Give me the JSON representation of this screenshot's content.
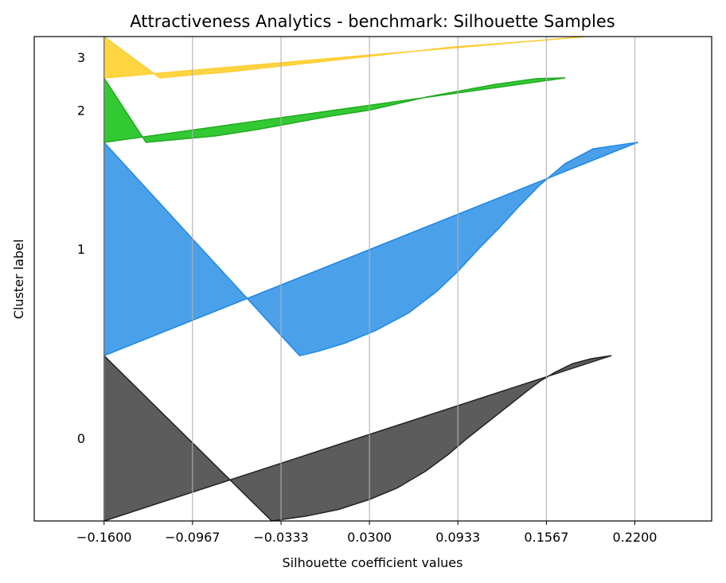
{
  "chart_data": {
    "type": "area",
    "title": "Attractiveness Analytics - benchmark: Silhouette Samples",
    "xlabel": "Silhouette coefficient values",
    "ylabel": "Cluster label",
    "xlim": [
      -0.21,
      0.275
    ],
    "xticks": [
      -0.16,
      -0.0967,
      -0.0333,
      0.03,
      0.0933,
      0.1567,
      0.22
    ],
    "xtick_labels": [
      "−0.1600",
      "−0.0967",
      "−0.0333",
      "0.0300",
      "0.0933",
      "0.1567",
      "0.2200"
    ],
    "grid": "x",
    "clusters": [
      {
        "label": "0",
        "color": "#333333",
        "edge_color": "#222222",
        "rows": [
          0,
          1000
        ],
        "profile": [
          {
            "f": 0.0,
            "v": 0.203
          },
          {
            "f": 0.02,
            "v": 0.188
          },
          {
            "f": 0.05,
            "v": 0.175
          },
          {
            "f": 0.1,
            "v": 0.163
          },
          {
            "f": 0.15,
            "v": 0.153
          },
          {
            "f": 0.2,
            "v": 0.145
          },
          {
            "f": 0.3,
            "v": 0.13
          },
          {
            "f": 0.4,
            "v": 0.115
          },
          {
            "f": 0.5,
            "v": 0.1
          },
          {
            "f": 0.6,
            "v": 0.086
          },
          {
            "f": 0.7,
            "v": 0.07
          },
          {
            "f": 0.8,
            "v": 0.05
          },
          {
            "f": 0.87,
            "v": 0.03
          },
          {
            "f": 0.93,
            "v": 0.008
          },
          {
            "f": 0.97,
            "v": -0.015
          },
          {
            "f": 1.0,
            "v": -0.04
          }
        ]
      },
      {
        "label": "1",
        "color": "#1e88e5",
        "edge_color": "#1e88e5",
        "rows": [
          1000,
          2290
        ],
        "profile": [
          {
            "f": 0.0,
            "v": 0.222
          },
          {
            "f": 0.03,
            "v": 0.19
          },
          {
            "f": 0.1,
            "v": 0.17
          },
          {
            "f": 0.2,
            "v": 0.152
          },
          {
            "f": 0.3,
            "v": 0.137
          },
          {
            "f": 0.4,
            "v": 0.123
          },
          {
            "f": 0.5,
            "v": 0.108
          },
          {
            "f": 0.6,
            "v": 0.094
          },
          {
            "f": 0.7,
            "v": 0.078
          },
          {
            "f": 0.8,
            "v": 0.058
          },
          {
            "f": 0.88,
            "v": 0.035
          },
          {
            "f": 0.94,
            "v": 0.013
          },
          {
            "f": 0.98,
            "v": -0.007
          },
          {
            "f": 1.0,
            "v": -0.02
          }
        ]
      },
      {
        "label": "2",
        "color": "#00bb00",
        "edge_color": "#22aa22",
        "rows": [
          2290,
          2680
        ],
        "profile": [
          {
            "f": 0.0,
            "v": 0.17
          },
          {
            "f": 0.01,
            "v": 0.15
          },
          {
            "f": 0.1,
            "v": 0.12
          },
          {
            "f": 0.2,
            "v": 0.095
          },
          {
            "f": 0.3,
            "v": 0.07
          },
          {
            "f": 0.4,
            "v": 0.05
          },
          {
            "f": 0.5,
            "v": 0.03
          },
          {
            "f": 0.6,
            "v": 0.0
          },
          {
            "f": 0.7,
            "v": -0.025
          },
          {
            "f": 0.8,
            "v": -0.05
          },
          {
            "f": 0.9,
            "v": -0.08
          },
          {
            "f": 0.96,
            "v": -0.11
          },
          {
            "f": 1.0,
            "v": -0.13
          }
        ]
      },
      {
        "label": "3",
        "color": "#ffcc11",
        "edge_color": "#ffcc33",
        "rows": [
          2680,
          2930
        ],
        "profile": [
          {
            "f": 0.0,
            "v": 0.184
          },
          {
            "f": 0.1,
            "v": 0.15
          },
          {
            "f": 0.25,
            "v": 0.09
          },
          {
            "f": 0.4,
            "v": 0.05
          },
          {
            "f": 0.55,
            "v": 0.01
          },
          {
            "f": 0.7,
            "v": -0.03
          },
          {
            "f": 0.85,
            "v": -0.07
          },
          {
            "f": 0.95,
            "v": -0.105
          },
          {
            "f": 1.0,
            "v": -0.12
          }
        ]
      }
    ],
    "total_rows": 2930
  }
}
